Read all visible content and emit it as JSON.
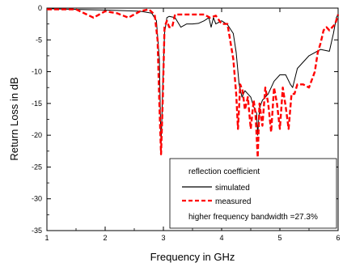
{
  "chart_data": {
    "type": "line",
    "xlabel": "Frequency in GHz",
    "ylabel": "Return Loss in dB",
    "xlim": [
      1,
      6
    ],
    "ylim": [
      -35,
      0
    ],
    "x_ticks": [
      1,
      2,
      3,
      4,
      5,
      6
    ],
    "y_ticks": [
      0,
      -5,
      -10,
      -15,
      -20,
      -25,
      -30,
      -35
    ],
    "grid": false,
    "legend": {
      "placement": "bottom-right",
      "title": "reflection coefficient",
      "entries": [
        "simulated",
        "measured"
      ],
      "annotation": "higher frequency bandwidth =27.3%"
    },
    "series": [
      {
        "name": "simulated",
        "color": "#000000",
        "style": "solid",
        "x": [
          1.0,
          1.5,
          2.0,
          2.3,
          2.6,
          2.8,
          2.88,
          2.93,
          2.96,
          2.99,
          3.02,
          3.06,
          3.1,
          3.2,
          3.3,
          3.4,
          3.5,
          3.6,
          3.7,
          3.78,
          3.82,
          3.86,
          3.9,
          4.0,
          4.1,
          4.2,
          4.25,
          4.3,
          4.35,
          4.4,
          4.45,
          4.5,
          4.55,
          4.6,
          4.62,
          4.64,
          4.66,
          4.7,
          4.8,
          4.9,
          5.0,
          5.1,
          5.18,
          5.22,
          5.3,
          5.5,
          5.7,
          5.85,
          5.92,
          5.97,
          6.0
        ],
        "values": [
          -0.1,
          -0.2,
          -0.3,
          -0.4,
          -0.5,
          -0.8,
          -2.0,
          -8.0,
          -22.0,
          -12.0,
          -4.0,
          -1.5,
          -1.3,
          -1.5,
          -3.0,
          -2.5,
          -2.5,
          -2.4,
          -2.0,
          -1.5,
          -3.0,
          -1.5,
          -2.5,
          -2.0,
          -2.6,
          -4.0,
          -7.0,
          -12.0,
          -14.0,
          -13.0,
          -13.5,
          -14.0,
          -15.5,
          -16.5,
          -20.0,
          -17.0,
          -15.5,
          -14.5,
          -13.5,
          -11.5,
          -10.5,
          -10.5,
          -12.0,
          -12.5,
          -9.5,
          -7.5,
          -6.5,
          -6.8,
          -4.0,
          -1.5,
          -1.0
        ]
      },
      {
        "name": "measured",
        "color": "#ff0000",
        "style": "dashed",
        "x": [
          1.0,
          1.5,
          1.8,
          2.0,
          2.2,
          2.4,
          2.6,
          2.75,
          2.85,
          2.9,
          2.93,
          2.96,
          2.99,
          3.02,
          3.06,
          3.1,
          3.15,
          3.2,
          3.3,
          3.4,
          3.5,
          3.6,
          3.7,
          3.8,
          3.9,
          4.0,
          4.1,
          4.2,
          4.25,
          4.28,
          4.32,
          4.36,
          4.4,
          4.45,
          4.5,
          4.55,
          4.58,
          4.62,
          4.65,
          4.7,
          4.75,
          4.8,
          4.85,
          4.9,
          4.95,
          5.0,
          5.05,
          5.1,
          5.15,
          5.2,
          5.25,
          5.3,
          5.4,
          5.5,
          5.6,
          5.65,
          5.7,
          5.75,
          5.8,
          5.85,
          5.9,
          5.95,
          6.0
        ],
        "values": [
          -0.2,
          -0.2,
          -1.5,
          -0.5,
          -0.8,
          -1.5,
          -0.5,
          -0.2,
          -1.0,
          -5.0,
          -15.0,
          -23.0,
          -14.0,
          -3.0,
          -2.0,
          -3.0,
          -3.0,
          -1.0,
          -1.0,
          -1.0,
          -1.0,
          -1.0,
          -1.0,
          -1.5,
          -1.2,
          -2.5,
          -2.5,
          -8.0,
          -13.5,
          -19.0,
          -12.0,
          -13.0,
          -16.0,
          -14.0,
          -19.0,
          -14.5,
          -16.5,
          -23.5,
          -15.0,
          -18.5,
          -12.5,
          -15.0,
          -19.5,
          -12.5,
          -15.0,
          -19.0,
          -12.5,
          -15.5,
          -19.0,
          -13.5,
          -13.5,
          -12.0,
          -12.0,
          -12.5,
          -10.0,
          -7.0,
          -5.5,
          -3.5,
          -3.0,
          -3.5,
          -3.0,
          -2.5,
          -1.0
        ]
      }
    ]
  }
}
